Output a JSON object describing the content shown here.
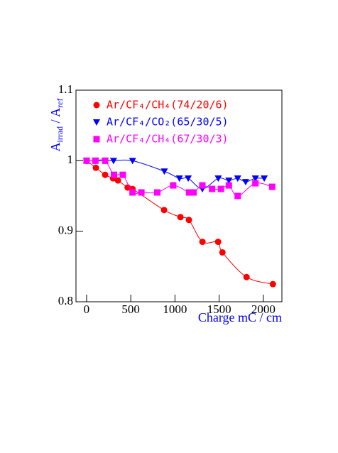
{
  "chart_data": {
    "type": "line",
    "ylabel_parts": [
      "A",
      "irrad",
      " / A",
      "ref"
    ],
    "xlabel": "Charge mC / cm",
    "xlim": [
      -120,
      2210
    ],
    "ylim": [
      0.8,
      1.1
    ],
    "xticks": [
      0,
      500,
      1000,
      1500,
      2000
    ],
    "yticks": [
      0.8,
      0.9,
      1,
      1.1
    ],
    "axis_label_color": "#0000ff",
    "series": [
      {
        "name": "Ar/CF₄/CH₄(74/20/6)",
        "color": "#ff0000",
        "marker": "circle",
        "x": [
          0,
          105,
          210,
          300,
          355,
          465,
          520,
          877,
          1062,
          1158,
          1311,
          1488,
          1537,
          1810,
          2108
        ],
        "values": [
          1.0,
          0.99,
          0.98,
          0.975,
          0.972,
          0.962,
          0.96,
          0.93,
          0.92,
          0.916,
          0.885,
          0.885,
          0.87,
          0.835,
          0.825
        ]
      },
      {
        "name": "Ar/CF₄/CO₂(65/30/5)",
        "color": "#0000ff",
        "marker": "triangle-down",
        "x": [
          0,
          100,
          210,
          305,
          520,
          880,
          1050,
          1150,
          1310,
          1490,
          1610,
          1710,
          1800,
          1910,
          2010
        ],
        "values": [
          1.0,
          1.0,
          1.0,
          1.0,
          1.0,
          0.985,
          0.975,
          0.975,
          0.96,
          0.975,
          0.972,
          0.975,
          0.97,
          0.975,
          0.975
        ]
      },
      {
        "name": "Ar/CF₄/CH₄(67/30/3)",
        "color": "#ff00ff",
        "marker": "square",
        "x": [
          0,
          100,
          210,
          310,
          410,
          520,
          620,
          800,
          980,
          1160,
          1210,
          1310,
          1420,
          1520,
          1610,
          1710,
          1910,
          2100
        ],
        "values": [
          1.0,
          1.0,
          1.0,
          0.98,
          0.98,
          0.955,
          0.955,
          0.955,
          0.965,
          0.955,
          0.955,
          0.965,
          0.96,
          0.96,
          0.965,
          0.95,
          0.968,
          0.963
        ]
      }
    ]
  }
}
